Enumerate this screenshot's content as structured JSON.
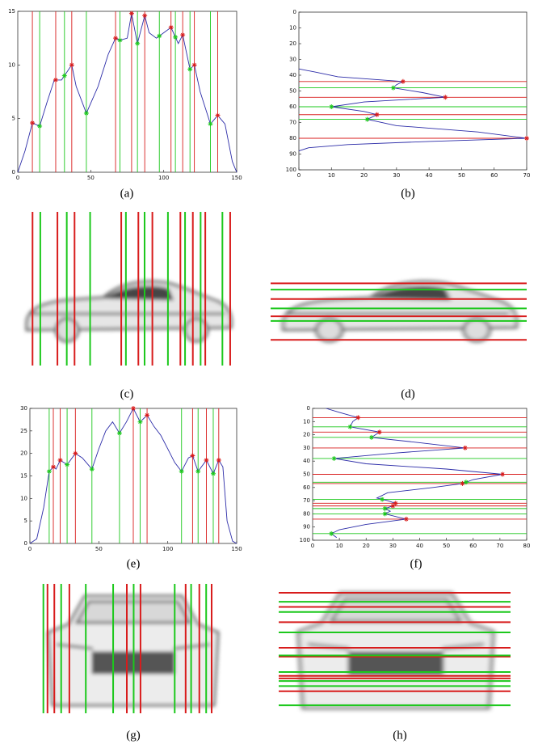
{
  "chart_data": [
    {
      "type": "line",
      "caption": "(a)",
      "orientation": "vertical",
      "x": [
        0,
        5,
        10,
        15,
        20,
        25,
        30,
        37,
        40,
        47,
        55,
        62,
        67,
        70,
        75,
        78,
        82,
        87,
        90,
        95,
        100,
        105,
        110,
        113,
        118,
        121,
        125,
        132,
        137,
        142,
        147,
        150
      ],
      "values": [
        0,
        2,
        4.6,
        4.3,
        6.5,
        8.6,
        8.6,
        10,
        8,
        5.5,
        8,
        11,
        12.5,
        12.3,
        12.5,
        14.8,
        12,
        14.6,
        13,
        12.5,
        13,
        13.5,
        12,
        12.8,
        9.6,
        10,
        7.5,
        4.5,
        5.3,
        4.5,
        1,
        0
      ],
      "xlim": [
        0,
        150
      ],
      "ylim": [
        0,
        15
      ],
      "xticks": [
        0,
        50,
        100,
        150
      ],
      "yticks": [
        0,
        5,
        10,
        15
      ],
      "color": "#2c2ca8",
      "peaks": [
        10,
        26,
        37,
        67,
        78,
        87,
        105,
        113,
        121,
        137
      ],
      "peak_color": "#d81c1c",
      "valleys": [
        15,
        32,
        47,
        70,
        82,
        97,
        108,
        118,
        132
      ],
      "valley_color": "#1cc81c"
    },
    {
      "type": "line",
      "caption": "(b)",
      "orientation": "horizontal",
      "x": [
        36,
        38,
        41,
        44,
        46,
        48,
        51,
        54,
        57,
        60,
        63,
        65,
        67,
        68,
        72,
        76,
        80,
        82,
        84,
        86,
        88
      ],
      "values": [
        0,
        5,
        12,
        32,
        30,
        29,
        38,
        45,
        20,
        10,
        20,
        24,
        22,
        21,
        30,
        55,
        70,
        40,
        15,
        3,
        0
      ],
      "xlim": [
        0,
        100
      ],
      "ylim": [
        0,
        70
      ],
      "xticks": [
        0,
        10,
        20,
        30,
        40,
        50,
        60,
        70,
        80,
        90,
        100
      ],
      "yticks": [
        0,
        10,
        20,
        30,
        40,
        50,
        60,
        70
      ],
      "color": "#2c2ca8",
      "peaks": [
        44,
        54,
        65,
        80
      ],
      "peak_color": "#d81c1c",
      "valleys": [
        48,
        60,
        68
      ],
      "valley_color": "#1cc81c"
    },
    {
      "type": "line",
      "caption": "(e)",
      "orientation": "vertical",
      "x": [
        0,
        5,
        10,
        14,
        17,
        19,
        22,
        27,
        33,
        38,
        45,
        50,
        55,
        60,
        65,
        70,
        75,
        80,
        85,
        90,
        95,
        100,
        105,
        110,
        115,
        118,
        122,
        128,
        133,
        137,
        140,
        143,
        147,
        150
      ],
      "values": [
        0,
        1,
        8,
        16,
        17,
        16.5,
        18.5,
        17.5,
        20,
        19,
        16.5,
        21,
        25,
        27,
        24.5,
        27,
        30,
        27,
        28.5,
        26,
        24,
        21,
        18,
        16,
        19,
        19.5,
        16,
        18.5,
        15.5,
        18.5,
        17,
        5,
        0.5,
        0
      ],
      "xlim": [
        0,
        150
      ],
      "ylim": [
        0,
        30
      ],
      "xticks": [
        0,
        50,
        100,
        150
      ],
      "yticks": [
        0,
        5,
        10,
        15,
        20,
        25,
        30
      ],
      "color": "#2c2ca8",
      "peaks": [
        17,
        22,
        33,
        75,
        85,
        118,
        128,
        137
      ],
      "peak_color": "#d81c1c",
      "valleys": [
        14,
        27,
        45,
        65,
        80,
        110,
        122,
        133
      ],
      "valley_color": "#1cc81c"
    },
    {
      "type": "line",
      "caption": "(f)",
      "orientation": "horizontal",
      "x": [
        0,
        3,
        7,
        10,
        14,
        18,
        22,
        26,
        30,
        34,
        38,
        42,
        46,
        50,
        54,
        57,
        60,
        64,
        68,
        70,
        72,
        74,
        76,
        78,
        80,
        84,
        88,
        92,
        95,
        98
      ],
      "values": [
        5,
        10,
        17,
        15,
        14,
        25,
        22,
        40,
        57,
        30,
        8,
        20,
        50,
        71,
        60,
        56,
        45,
        28,
        24,
        28,
        31,
        30,
        27,
        29,
        27,
        35,
        20,
        10,
        7,
        9
      ],
      "xlim": [
        0,
        100
      ],
      "ylim": [
        0,
        80
      ],
      "xticks": [
        0,
        10,
        20,
        30,
        40,
        50,
        60,
        70,
        80,
        90,
        100
      ],
      "yticks": [
        0,
        10,
        20,
        30,
        40,
        50,
        60,
        70,
        80
      ],
      "color": "#2c2ca8",
      "peaks": [
        7,
        18,
        30,
        50,
        57,
        72,
        74,
        84
      ],
      "peak_color": "#d81c1c",
      "valleys": [
        14,
        22,
        38,
        56,
        69,
        76,
        80,
        95
      ],
      "valley_color": "#1cc81c"
    }
  ],
  "images": [
    {
      "caption": "(c)"
    },
    {
      "caption": "(d)"
    },
    {
      "caption": "(g)"
    },
    {
      "caption": "(h)"
    }
  ]
}
